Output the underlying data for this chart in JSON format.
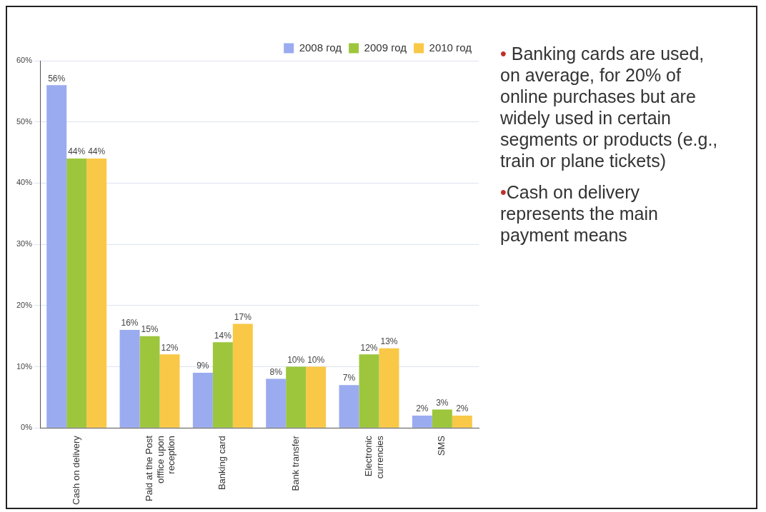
{
  "chart_data": {
    "type": "bar",
    "categories": [
      "Cash on delivery",
      "Paid at the Post offfice upon reception",
      "Banking card",
      "Bank transfer",
      "Electronic currencies",
      "SMS"
    ],
    "series": [
      {
        "name": "2008 год",
        "color": "#9aabf0",
        "values": [
          56,
          16,
          9,
          8,
          7,
          2
        ],
        "value_labels": [
          "56%",
          "16%",
          "9%",
          "8%",
          "7%",
          "2%"
        ]
      },
      {
        "name": "2009 год",
        "color": "#9dc63c",
        "values": [
          44,
          15,
          14,
          10,
          12,
          3
        ],
        "value_labels": [
          "44%",
          "15%",
          "14%",
          "10%",
          "12%",
          "3%"
        ]
      },
      {
        "name": "2010 год",
        "color": "#f9c846",
        "values": [
          44,
          12,
          17,
          10,
          13,
          2
        ],
        "value_labels": [
          "44%",
          "12%",
          "17%",
          "10%",
          "13%",
          "2%"
        ]
      }
    ],
    "ylim": [
      0,
      60
    ],
    "yticks": [
      {
        "value": 0,
        "label": "0%"
      },
      {
        "value": 10,
        "label": "10%"
      },
      {
        "value": 20,
        "label": "20%"
      },
      {
        "value": 30,
        "label": "30%"
      },
      {
        "value": 40,
        "label": "40%"
      },
      {
        "value": 50,
        "label": "50%"
      },
      {
        "value": 60,
        "label": "60%"
      }
    ],
    "grid": "y",
    "legend": "top right",
    "annotations": [
      "• Banking cards are used, on average, for 20% of online purchases but are widely used in certain segments or products (e.g., train or plane tickets)",
      "•Cash on delivery represents the main payment means"
    ]
  }
}
